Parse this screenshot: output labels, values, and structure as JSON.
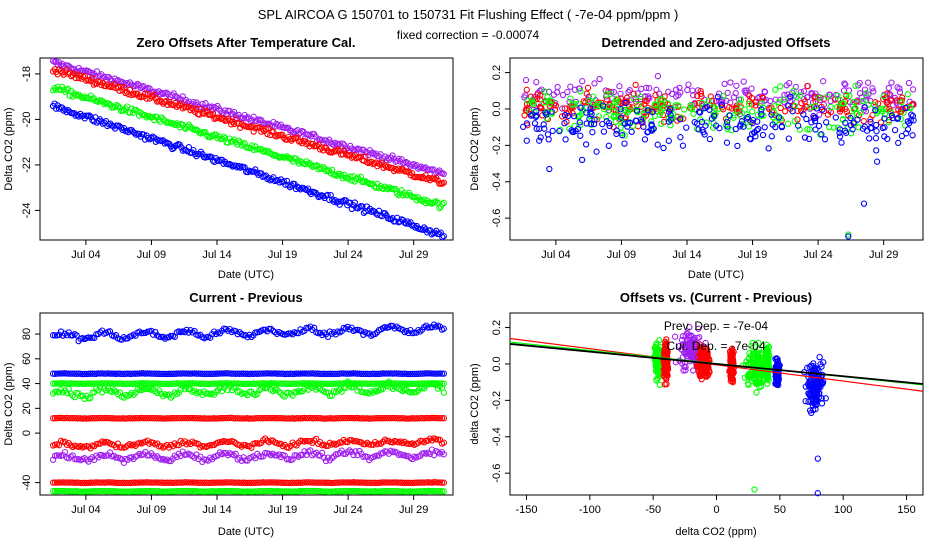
{
  "figure": {
    "title": "SPL   AIRCOA G   150701 to 150731   Fit Flushing Effect ( -7e-04 ppm/ppm )",
    "subtitle": "fixed correction = -0.00074"
  },
  "colors": {
    "blue": "#0000ff",
    "green": "#00ff00",
    "red": "#ff0000",
    "purple": "#a020f0",
    "black": "#000000"
  },
  "chart_data": [
    {
      "id": "zero-offsets",
      "type": "scatter",
      "title": "Zero Offsets After Temperature Cal.",
      "xlabel": "Date (UTC)",
      "ylabel": "Delta CO2 (ppm)",
      "xlim": [
        0.5,
        32.0
      ],
      "ylim": [
        -25.3,
        -17.3
      ],
      "x_ticks": [
        4,
        9,
        14,
        19,
        24,
        29
      ],
      "x_tick_labels": [
        "Jul 04",
        "Jul 09",
        "Jul 14",
        "Jul 19",
        "Jul 24",
        "Jul 29"
      ],
      "y_ticks": [
        -18,
        -20,
        -22,
        -24
      ],
      "y_tick_labels": [
        "-18",
        "-20",
        "-22",
        "-24"
      ],
      "series": [
        {
          "name": "purple",
          "color": "#a020f0",
          "x_start": 1.5,
          "x_end": 31.3,
          "y_start": -17.5,
          "y_end": -22.4,
          "noise": 0.1
        },
        {
          "name": "red",
          "color": "#ff0000",
          "x_start": 1.5,
          "x_end": 31.3,
          "y_start": -17.8,
          "y_end": -22.8,
          "noise": 0.1
        },
        {
          "name": "green",
          "color": "#00ff00",
          "x_start": 1.5,
          "x_end": 31.3,
          "y_start": -18.6,
          "y_end": -23.8,
          "noise": 0.1
        },
        {
          "name": "blue",
          "color": "#0000ff",
          "x_start": 1.5,
          "x_end": 31.3,
          "y_start": -19.4,
          "y_end": -25.1,
          "noise": 0.1
        }
      ]
    },
    {
      "id": "detrended",
      "type": "scatter",
      "title": "Detrended and Zero-adjusted Offsets",
      "xlabel": "Date (UTC)",
      "ylabel": "Delta CO2 (ppm)",
      "xlim": [
        0.5,
        32.0
      ],
      "ylim": [
        -0.72,
        0.28
      ],
      "x_ticks": [
        4,
        9,
        14,
        19,
        24,
        29
      ],
      "x_tick_labels": [
        "Jul 04",
        "Jul 09",
        "Jul 14",
        "Jul 19",
        "Jul 24",
        "Jul 29"
      ],
      "y_ticks": [
        0.2,
        0.0,
        -0.2,
        -0.4,
        -0.6
      ],
      "y_tick_labels": [
        "0.2",
        "0.0",
        "-0.2",
        "-0.4",
        "-0.6"
      ],
      "series": [
        {
          "name": "purple",
          "color": "#a020f0",
          "x_start": 1.5,
          "x_end": 31.3,
          "center": 0.07,
          "spread": 0.07
        },
        {
          "name": "red",
          "color": "#ff0000",
          "x_start": 1.5,
          "x_end": 31.3,
          "center": 0.01,
          "spread": 0.06
        },
        {
          "name": "green",
          "color": "#00ff00",
          "x_start": 1.5,
          "x_end": 31.3,
          "center": -0.01,
          "spread": 0.08
        },
        {
          "name": "blue",
          "color": "#0000ff",
          "x_start": 1.5,
          "x_end": 31.3,
          "center": -0.09,
          "spread": 0.08
        }
      ],
      "outliers": [
        {
          "x": 26.3,
          "y": -0.69,
          "color": "#00ff00"
        },
        {
          "x": 26.3,
          "y": -0.7,
          "color": "#0000ff"
        },
        {
          "x": 27.5,
          "y": -0.52,
          "color": "#0000ff"
        },
        {
          "x": 3.5,
          "y": -0.33,
          "color": "#0000ff"
        },
        {
          "x": 28.5,
          "y": -0.29,
          "color": "#0000ff"
        },
        {
          "x": 6.0,
          "y": -0.28,
          "color": "#0000ff"
        }
      ]
    },
    {
      "id": "current-previous",
      "type": "scatter",
      "title": "Current - Previous",
      "xlabel": "Date (UTC)",
      "ylabel": "Delta CO2 (ppm)",
      "xlim": [
        0.5,
        32.0
      ],
      "ylim": [
        -50,
        97
      ],
      "x_ticks": [
        4,
        9,
        14,
        19,
        24,
        29
      ],
      "x_tick_labels": [
        "Jul 04",
        "Jul 09",
        "Jul 14",
        "Jul 19",
        "Jul 24",
        "Jul 29"
      ],
      "y_ticks": [
        80,
        60,
        40,
        20,
        0,
        -40
      ],
      "y_tick_labels": [
        "80",
        "60",
        "40",
        "20",
        "0",
        "-40"
      ],
      "series": [
        {
          "name": "blue-wave",
          "color": "#0000ff",
          "center": 78,
          "spread": 4,
          "trend": 6,
          "x_start": 1.5,
          "x_end": 31.3
        },
        {
          "name": "blue-line",
          "color": "#0000ff",
          "center": 48,
          "spread": 0.3,
          "trend": 0,
          "x_start": 1.5,
          "x_end": 31.3
        },
        {
          "name": "green-wave",
          "color": "#00ff00",
          "center": 32,
          "spread": 5,
          "trend": 4,
          "x_start": 1.5,
          "x_end": 31.3
        },
        {
          "name": "green-line",
          "color": "#00ff00",
          "center": 40,
          "spread": 0.3,
          "trend": 0,
          "x_start": 1.5,
          "x_end": 31.3
        },
        {
          "name": "red-line",
          "color": "#ff0000",
          "center": 12,
          "spread": 0.3,
          "trend": 0,
          "x_start": 1.5,
          "x_end": 31.3
        },
        {
          "name": "red-wave",
          "color": "#ff0000",
          "center": -10,
          "spread": 3,
          "trend": 3,
          "x_start": 1.5,
          "x_end": 31.3
        },
        {
          "name": "purple-wave",
          "color": "#a020f0",
          "center": -20,
          "spread": 4,
          "trend": 3,
          "x_start": 1.5,
          "x_end": 31.3
        },
        {
          "name": "red-low",
          "color": "#ff0000",
          "center": -40,
          "spread": 0.3,
          "trend": 0,
          "x_start": 1.5,
          "x_end": 31.3
        },
        {
          "name": "green-low",
          "color": "#00ff00",
          "center": -47,
          "spread": 0.3,
          "trend": 0,
          "x_start": 1.5,
          "x_end": 31.3
        }
      ]
    },
    {
      "id": "offsets-vs",
      "type": "scatter",
      "title": "Offsets vs. (Current - Previous)",
      "xlabel": "delta CO2 (ppm)",
      "ylabel": "delta CO2 (ppm)",
      "xlim": [
        -163,
        163
      ],
      "ylim": [
        -0.72,
        0.28
      ],
      "x_ticks": [
        -150,
        -100,
        -50,
        0,
        50,
        100,
        150
      ],
      "x_tick_labels": [
        "-150",
        "-100",
        "-50",
        "0",
        "50",
        "100",
        "150"
      ],
      "y_ticks": [
        0.2,
        0.0,
        -0.2,
        -0.4,
        -0.6
      ],
      "y_tick_labels": [
        "0.2",
        "0.0",
        "-0.2",
        "-0.4",
        "-0.6"
      ],
      "annotations": [
        "Prev. Dep. = -7e-04",
        "Cur. Dep. = -7e-04"
      ],
      "clusters": [
        {
          "color": "#00ff00",
          "x_center": -46,
          "x_spread": 2,
          "y_center": 0.02,
          "y_spread": 0.07
        },
        {
          "color": "#ff0000",
          "x_center": -40,
          "x_spread": 1,
          "y_center": 0.02,
          "y_spread": 0.08
        },
        {
          "color": "#a020f0",
          "x_center": -20,
          "x_spread": 7,
          "y_center": 0.07,
          "y_spread": 0.07
        },
        {
          "color": "#ff0000",
          "x_center": -10,
          "x_spread": 3,
          "y_center": 0.01,
          "y_spread": 0.06
        },
        {
          "color": "#ff0000",
          "x_center": 12,
          "x_spread": 1,
          "y_center": 0.0,
          "y_spread": 0.06
        },
        {
          "color": "#00ff00",
          "x_center": 32,
          "x_spread": 6,
          "y_center": -0.02,
          "y_spread": 0.08
        },
        {
          "color": "#00ff00",
          "x_center": 40,
          "x_spread": 1,
          "y_center": 0.0,
          "y_spread": 0.06
        },
        {
          "color": "#0000ff",
          "x_center": 48,
          "x_spread": 1,
          "y_center": -0.05,
          "y_spread": 0.05
        },
        {
          "color": "#0000ff",
          "x_center": 78,
          "x_spread": 5,
          "y_center": -0.12,
          "y_spread": 0.09
        }
      ],
      "outliers": [
        {
          "x": 30,
          "y": -0.69,
          "color": "#00ff00"
        },
        {
          "x": 80,
          "y": -0.71,
          "color": "#0000ff"
        },
        {
          "x": 80,
          "y": -0.52,
          "color": "#0000ff"
        }
      ],
      "fit_lines": [
        {
          "name": "red-fit",
          "color": "#ff0000",
          "x": [
            -163,
            163
          ],
          "y": [
            0.14,
            -0.15
          ]
        },
        {
          "name": "green-fit",
          "color": "#00ff00",
          "x": [
            -163,
            163
          ],
          "y": [
            0.12,
            -0.115
          ]
        },
        {
          "name": "black-fit",
          "color": "#000000",
          "x": [
            -163,
            163
          ],
          "y": [
            0.11,
            -0.11
          ]
        }
      ]
    }
  ]
}
